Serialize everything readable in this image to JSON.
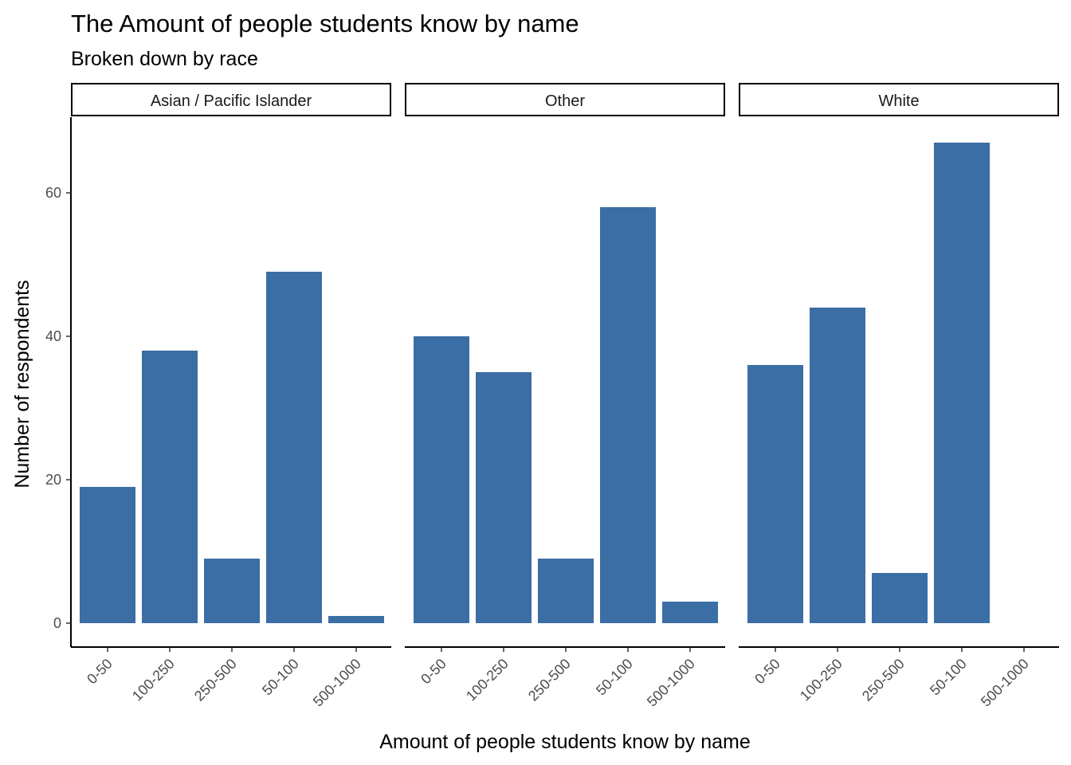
{
  "chart_data": {
    "type": "bar",
    "title": "The Amount of people students know by name",
    "subtitle": "Broken down by race",
    "xlabel": "Amount of people students know by name",
    "ylabel": "Number of respondents",
    "categories": [
      "0-50",
      "100-250",
      "250-500",
      "50-100",
      "500-1000"
    ],
    "ylim": [
      0,
      70
    ],
    "yticks": [
      0,
      20,
      40,
      60
    ],
    "bar_color": "#3a6ea5",
    "grid": false,
    "facets": [
      {
        "name": "Asian / Pacific Islander",
        "values": [
          19,
          38,
          9,
          49,
          1
        ]
      },
      {
        "name": "Other",
        "values": [
          40,
          35,
          9,
          58,
          3
        ]
      },
      {
        "name": "White",
        "values": [
          36,
          44,
          7,
          67,
          0
        ]
      }
    ]
  }
}
